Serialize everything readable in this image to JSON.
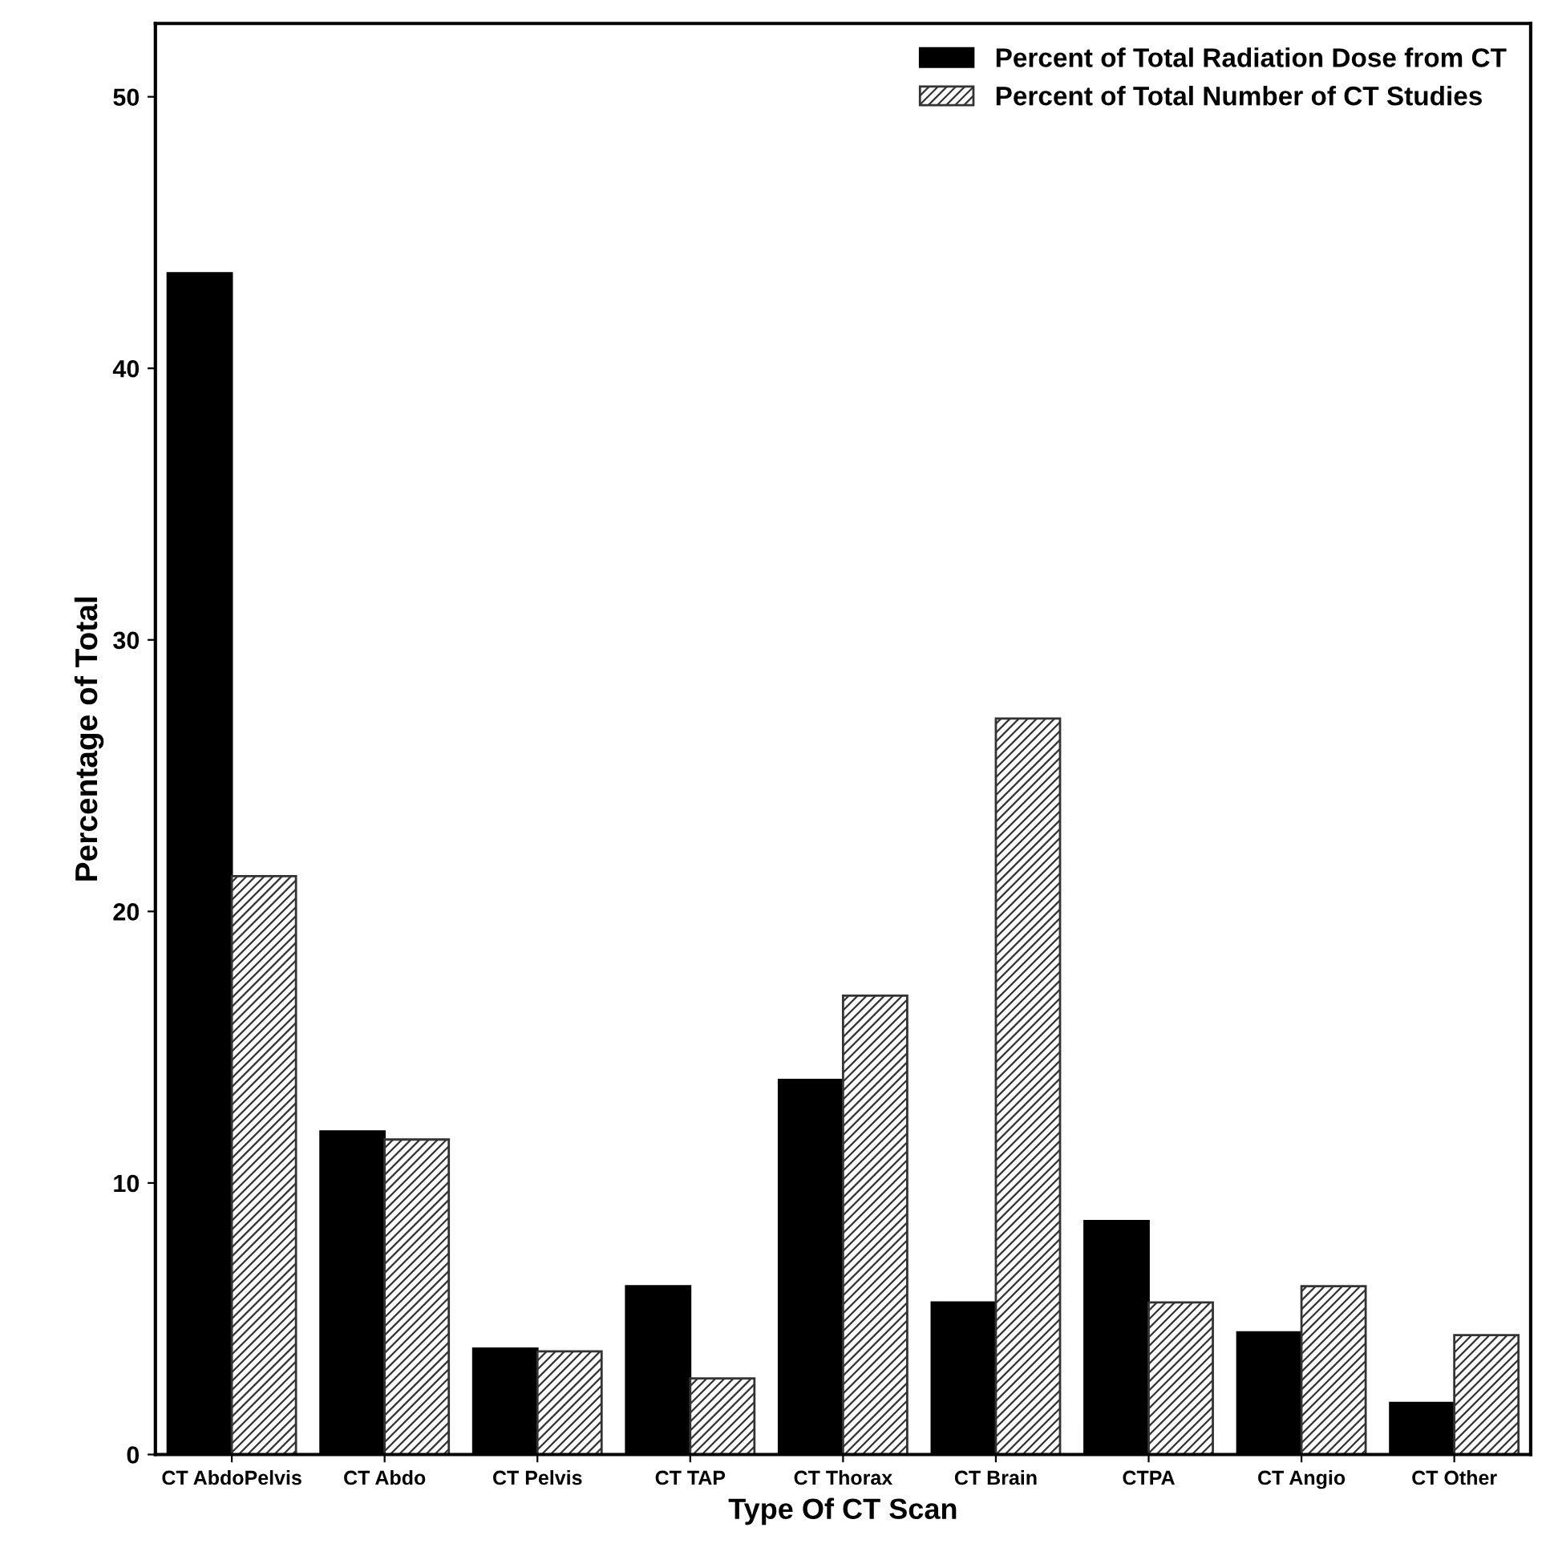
{
  "chart_data": {
    "type": "bar",
    "xlabel": "Type Of CT Scan",
    "ylabel": "Percentage of Total",
    "categories": [
      "CT AbdoPelvis",
      "CT Abdo",
      "CT Pelvis",
      "CT TAP",
      "CT Thorax",
      "CT Brain",
      "CTPA",
      "CT Angio",
      "CT Other"
    ],
    "series": [
      {
        "name": "Percent of Total Radiation Dose from CT",
        "color": "#000000",
        "values": [
          43.5,
          11.9,
          3.9,
          6.2,
          13.8,
          5.6,
          8.6,
          4.5,
          1.9
        ]
      },
      {
        "name": "Percent of Total Number of CT Studies",
        "color": "#333333",
        "values": [
          21.3,
          11.6,
          3.8,
          2.8,
          16.9,
          27.1,
          5.6,
          6.2,
          4.4
        ]
      }
    ],
    "ylim": [
      0,
      52.7
    ],
    "yticks": [
      0,
      10,
      20,
      30,
      40,
      50
    ],
    "grid": false,
    "legend": "top right"
  }
}
